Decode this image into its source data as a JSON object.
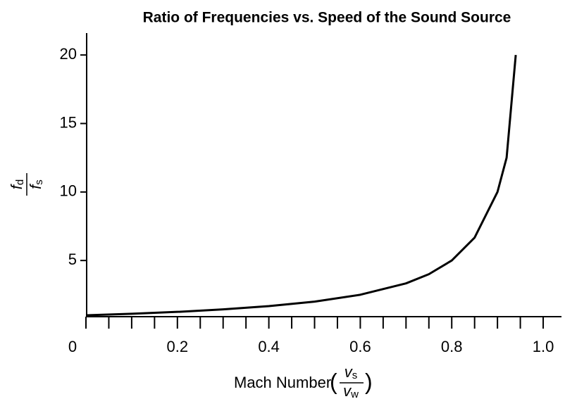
{
  "chart_data": {
    "type": "line",
    "title": "Ratio of Frequencies vs. Speed of the Sound Source",
    "x_label": {
      "text": "Mach Number",
      "numerator": {
        "symbol": "v",
        "subscript": "s"
      },
      "denominator": {
        "symbol": "v",
        "subscript": "w"
      }
    },
    "y_label": {
      "numerator": {
        "symbol": "f",
        "subscript": "d"
      },
      "denominator": {
        "symbol": "f",
        "subscript": "s"
      }
    },
    "x": [
      0,
      0.1,
      0.2,
      0.3,
      0.4,
      0.5,
      0.6,
      0.7,
      0.75,
      0.8,
      0.85,
      0.9,
      0.92,
      0.94
    ],
    "series": [
      {
        "name": "f_d/f_s",
        "color": "#000000",
        "values": [
          1,
          1.11,
          1.25,
          1.43,
          1.67,
          2,
          2.5,
          3.33,
          4,
          5,
          6.67,
          10,
          12.5,
          20
        ]
      }
    ],
    "xlim": [
      0,
      1.04
    ],
    "ylim": [
      0.9,
      21.6
    ],
    "xticks": [
      0,
      0.2,
      0.4,
      0.6,
      0.8,
      {
        "value": 1,
        "label": "1.0"
      }
    ],
    "xminor_ticks": [
      0.05,
      0.1,
      0.15,
      0.25,
      0.3,
      0.35,
      0.45,
      0.5,
      0.55,
      0.65,
      0.7,
      0.75,
      0.85,
      0.9,
      0.95
    ],
    "yticks": [
      5,
      10,
      15,
      20
    ],
    "grid": false
  }
}
